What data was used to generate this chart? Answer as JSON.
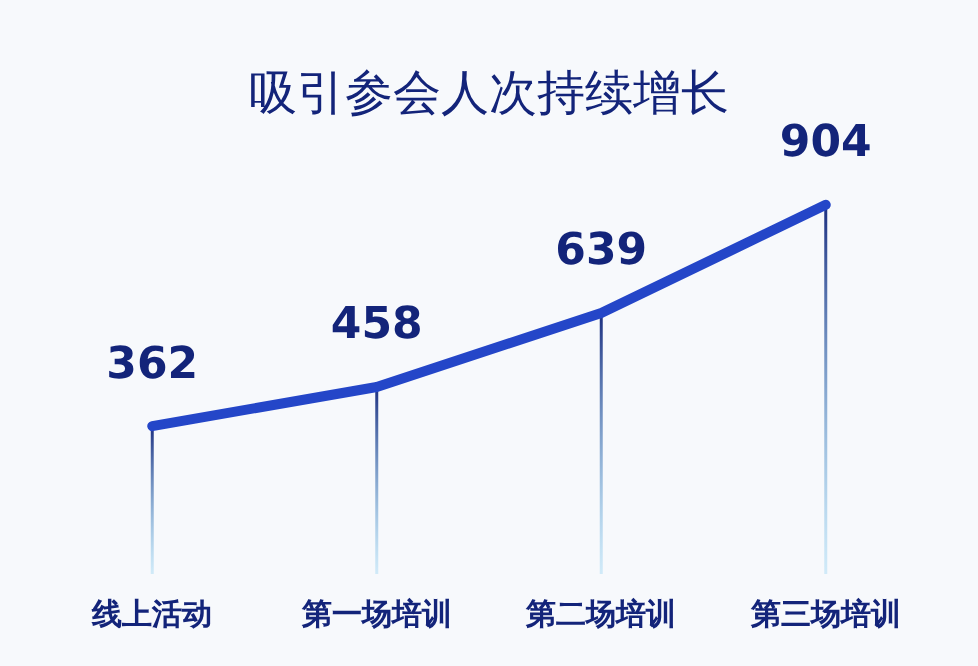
{
  "chart_data": {
    "type": "line",
    "title": "吸引参会人次持续增长",
    "categories": [
      "线上活动",
      "第一场培训",
      "第二场培训",
      "第三场培训"
    ],
    "values": [
      362,
      458,
      639,
      904
    ],
    "color": "#2446c8",
    "data_labels": true,
    "legend": false,
    "tick_labels": "x",
    "grid": "x"
  }
}
